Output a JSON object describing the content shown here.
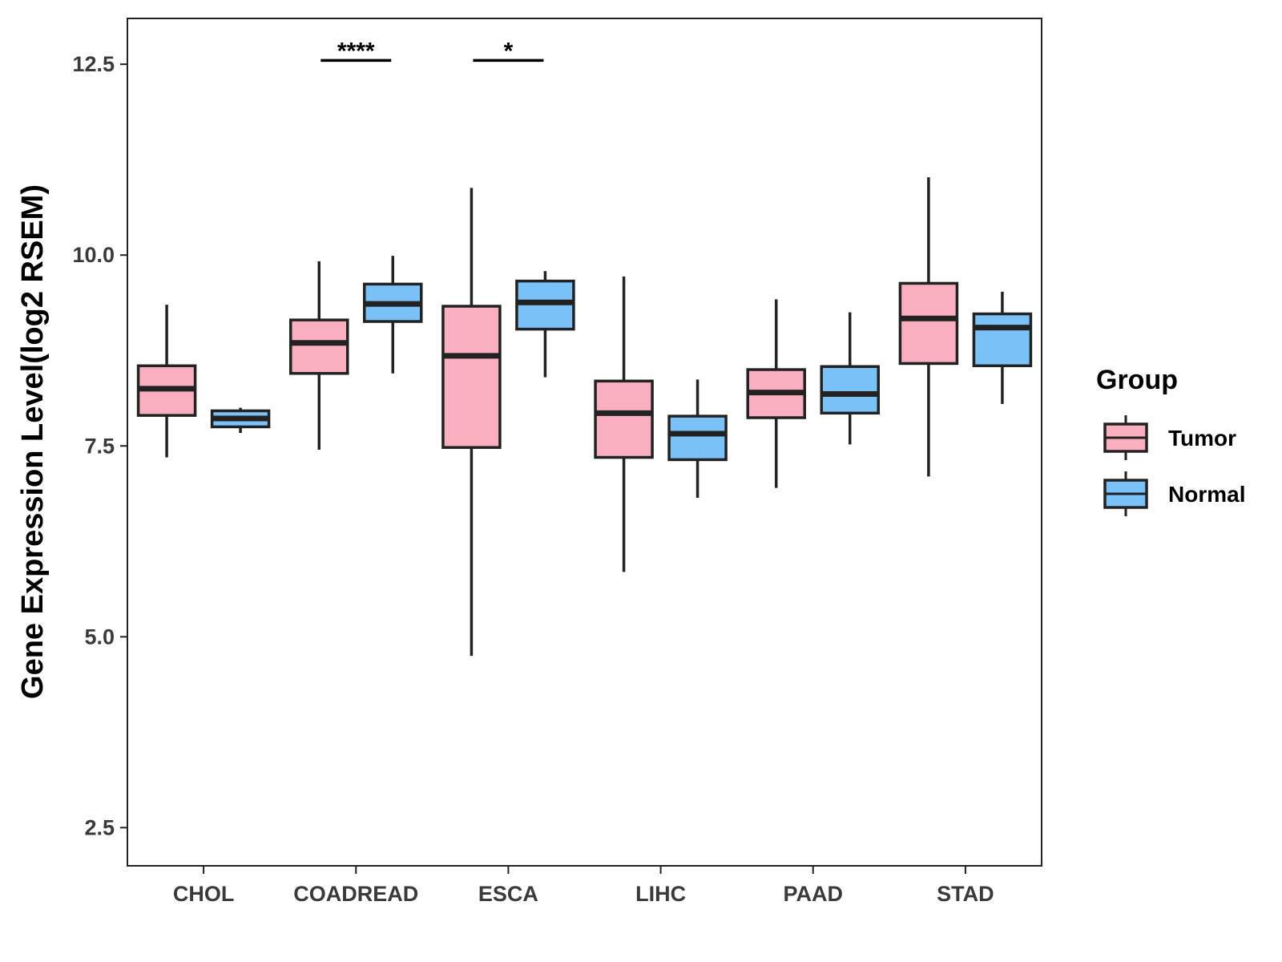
{
  "chart_data": {
    "type": "boxplot",
    "title": "",
    "xlabel": "",
    "ylabel": "Gene Expression Level(log2 RSEM)",
    "ylim": [
      2.0,
      13.1
    ],
    "yticks": [
      "2.5",
      "5.0",
      "7.5",
      "10.0",
      "12.5"
    ],
    "ytick_values": [
      2.5,
      5.0,
      7.5,
      10.0,
      12.5
    ],
    "categories": [
      "CHOL",
      "COADREAD",
      "ESCA",
      "LIHC",
      "PAAD",
      "STAD"
    ],
    "legend": {
      "title": "Group",
      "position": "right",
      "entries": [
        "Tumor",
        "Normal"
      ]
    },
    "colors": {
      "Tumor": "#f9afc0",
      "Normal": "#79c1f6",
      "box_stroke": "#222222"
    },
    "series": [
      {
        "name": "Tumor",
        "boxes": [
          {
            "category": "CHOL",
            "whisker_low": 7.35,
            "q1": 7.9,
            "median": 8.25,
            "q3": 8.55,
            "whisker_high": 9.35
          },
          {
            "category": "COADREAD",
            "whisker_low": 7.45,
            "q1": 8.45,
            "median": 8.85,
            "q3": 9.15,
            "whisker_high": 9.92
          },
          {
            "category": "ESCA",
            "whisker_low": 4.75,
            "q1": 7.48,
            "median": 8.68,
            "q3": 9.33,
            "whisker_high": 10.88
          },
          {
            "category": "LIHC",
            "whisker_low": 5.85,
            "q1": 7.35,
            "median": 7.93,
            "q3": 8.35,
            "whisker_high": 9.72
          },
          {
            "category": "PAAD",
            "whisker_low": 6.95,
            "q1": 7.87,
            "median": 8.2,
            "q3": 8.5,
            "whisker_high": 9.42
          },
          {
            "category": "STAD",
            "whisker_low": 7.1,
            "q1": 8.58,
            "median": 9.17,
            "q3": 9.63,
            "whisker_high": 11.02
          }
        ]
      },
      {
        "name": "Normal",
        "boxes": [
          {
            "category": "CHOL",
            "whisker_low": 7.67,
            "q1": 7.75,
            "median": 7.86,
            "q3": 7.96,
            "whisker_high": 8.0
          },
          {
            "category": "COADREAD",
            "whisker_low": 8.45,
            "q1": 9.13,
            "median": 9.36,
            "q3": 9.62,
            "whisker_high": 9.99
          },
          {
            "category": "ESCA",
            "whisker_low": 8.4,
            "q1": 9.03,
            "median": 9.38,
            "q3": 9.66,
            "whisker_high": 9.79
          },
          {
            "category": "LIHC",
            "whisker_low": 6.82,
            "q1": 7.32,
            "median": 7.66,
            "q3": 7.89,
            "whisker_high": 8.37
          },
          {
            "category": "PAAD",
            "whisker_low": 7.52,
            "q1": 7.93,
            "median": 8.18,
            "q3": 8.54,
            "whisker_high": 9.25
          },
          {
            "category": "STAD",
            "whisker_low": 8.05,
            "q1": 8.55,
            "median": 9.05,
            "q3": 9.23,
            "whisker_high": 9.52
          }
        ]
      }
    ],
    "significance": [
      {
        "category": "COADREAD",
        "label": "****",
        "y": 12.55
      },
      {
        "category": "ESCA",
        "label": "*",
        "y": 12.55
      }
    ]
  }
}
